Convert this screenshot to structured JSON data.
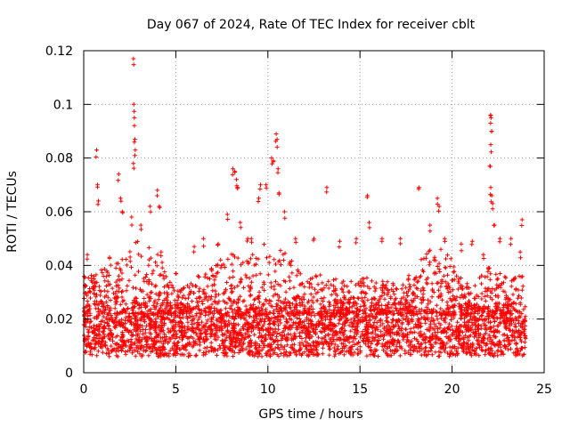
{
  "chart_data": {
    "type": "scatter",
    "title": "Day 067 of 2024, Rate Of TEC Index for receiver cblt",
    "xlabel": "GPS time / hours",
    "ylabel": "ROTI / TECUs",
    "xlim": [
      0,
      25
    ],
    "ylim": [
      0,
      0.12
    ],
    "xticks": [
      0,
      5,
      10,
      15,
      20,
      25
    ],
    "xtick_labels": [
      "0",
      "5",
      "10",
      "15",
      "20",
      "25"
    ],
    "yticks": [
      0,
      0.02,
      0.04,
      0.06,
      0.08,
      0.1,
      0.12
    ],
    "ytick_labels": [
      "0",
      "0.02",
      "0.04",
      "0.06",
      "0.08",
      "0.1",
      "0.12"
    ],
    "grid": true,
    "marker": "+",
    "series": [
      {
        "name": "ROTI",
        "color": "#ff0000",
        "baseline_band": [
          0.006,
          0.022
        ],
        "data_coverage_hours": [
          0,
          24
        ],
        "notable_points": [
          {
            "x": 0.2,
            "y": 0.044
          },
          {
            "x": 0.7,
            "y": 0.083
          },
          {
            "x": 0.75,
            "y": 0.07
          },
          {
            "x": 0.8,
            "y": 0.064
          },
          {
            "x": 1.4,
            "y": 0.043
          },
          {
            "x": 1.9,
            "y": 0.074
          },
          {
            "x": 2.0,
            "y": 0.065
          },
          {
            "x": 2.1,
            "y": 0.06
          },
          {
            "x": 2.7,
            "y": 0.117
          },
          {
            "x": 2.72,
            "y": 0.1
          },
          {
            "x": 2.75,
            "y": 0.095
          },
          {
            "x": 2.78,
            "y": 0.087
          },
          {
            "x": 2.8,
            "y": 0.083
          },
          {
            "x": 2.7,
            "y": 0.078
          },
          {
            "x": 2.6,
            "y": 0.058
          },
          {
            "x": 3.1,
            "y": 0.055
          },
          {
            "x": 3.6,
            "y": 0.062
          },
          {
            "x": 4.0,
            "y": 0.068
          },
          {
            "x": 4.1,
            "y": 0.062
          },
          {
            "x": 4.2,
            "y": 0.045
          },
          {
            "x": 5.0,
            "y": 0.037
          },
          {
            "x": 6.0,
            "y": 0.047
          },
          {
            "x": 6.5,
            "y": 0.05
          },
          {
            "x": 7.3,
            "y": 0.048
          },
          {
            "x": 7.8,
            "y": 0.059
          },
          {
            "x": 8.1,
            "y": 0.076
          },
          {
            "x": 8.2,
            "y": 0.075
          },
          {
            "x": 8.3,
            "y": 0.072
          },
          {
            "x": 8.35,
            "y": 0.069
          },
          {
            "x": 8.5,
            "y": 0.056
          },
          {
            "x": 8.9,
            "y": 0.05
          },
          {
            "x": 9.1,
            "y": 0.05
          },
          {
            "x": 9.5,
            "y": 0.065
          },
          {
            "x": 9.6,
            "y": 0.07
          },
          {
            "x": 9.9,
            "y": 0.07
          },
          {
            "x": 10.2,
            "y": 0.08
          },
          {
            "x": 10.3,
            "y": 0.079
          },
          {
            "x": 10.45,
            "y": 0.089
          },
          {
            "x": 10.5,
            "y": 0.087
          },
          {
            "x": 10.55,
            "y": 0.076
          },
          {
            "x": 10.6,
            "y": 0.067
          },
          {
            "x": 10.9,
            "y": 0.06
          },
          {
            "x": 11.5,
            "y": 0.05
          },
          {
            "x": 12.5,
            "y": 0.05
          },
          {
            "x": 13.2,
            "y": 0.069
          },
          {
            "x": 13.9,
            "y": 0.049
          },
          {
            "x": 14.8,
            "y": 0.05
          },
          {
            "x": 15.4,
            "y": 0.066
          },
          {
            "x": 15.5,
            "y": 0.056
          },
          {
            "x": 16.2,
            "y": 0.05
          },
          {
            "x": 17.2,
            "y": 0.05
          },
          {
            "x": 18.2,
            "y": 0.069
          },
          {
            "x": 18.8,
            "y": 0.055
          },
          {
            "x": 19.2,
            "y": 0.065
          },
          {
            "x": 19.3,
            "y": 0.062
          },
          {
            "x": 19.6,
            "y": 0.05
          },
          {
            "x": 20.5,
            "y": 0.048
          },
          {
            "x": 21.1,
            "y": 0.049
          },
          {
            "x": 21.7,
            "y": 0.044
          },
          {
            "x": 22.1,
            "y": 0.096
          },
          {
            "x": 22.12,
            "y": 0.095
          },
          {
            "x": 22.15,
            "y": 0.09
          },
          {
            "x": 22.1,
            "y": 0.085
          },
          {
            "x": 22.05,
            "y": 0.077
          },
          {
            "x": 22.1,
            "y": 0.069
          },
          {
            "x": 22.15,
            "y": 0.066
          },
          {
            "x": 22.2,
            "y": 0.063
          },
          {
            "x": 22.3,
            "y": 0.055
          },
          {
            "x": 22.6,
            "y": 0.05
          },
          {
            "x": 23.2,
            "y": 0.05
          },
          {
            "x": 23.8,
            "y": 0.057
          },
          {
            "x": 23.7,
            "y": 0.045
          }
        ],
        "envelope_hours": [
          0,
          1,
          2,
          3,
          4,
          5,
          6,
          7,
          8,
          9,
          10,
          11,
          12,
          13,
          14,
          15,
          16,
          17,
          18,
          19,
          20,
          21,
          22,
          23,
          24
        ],
        "envelope_upper": [
          0.036,
          0.04,
          0.042,
          0.05,
          0.045,
          0.03,
          0.035,
          0.04,
          0.045,
          0.043,
          0.05,
          0.045,
          0.035,
          0.037,
          0.034,
          0.037,
          0.035,
          0.033,
          0.04,
          0.05,
          0.042,
          0.032,
          0.04,
          0.036,
          0.042
        ]
      }
    ]
  }
}
